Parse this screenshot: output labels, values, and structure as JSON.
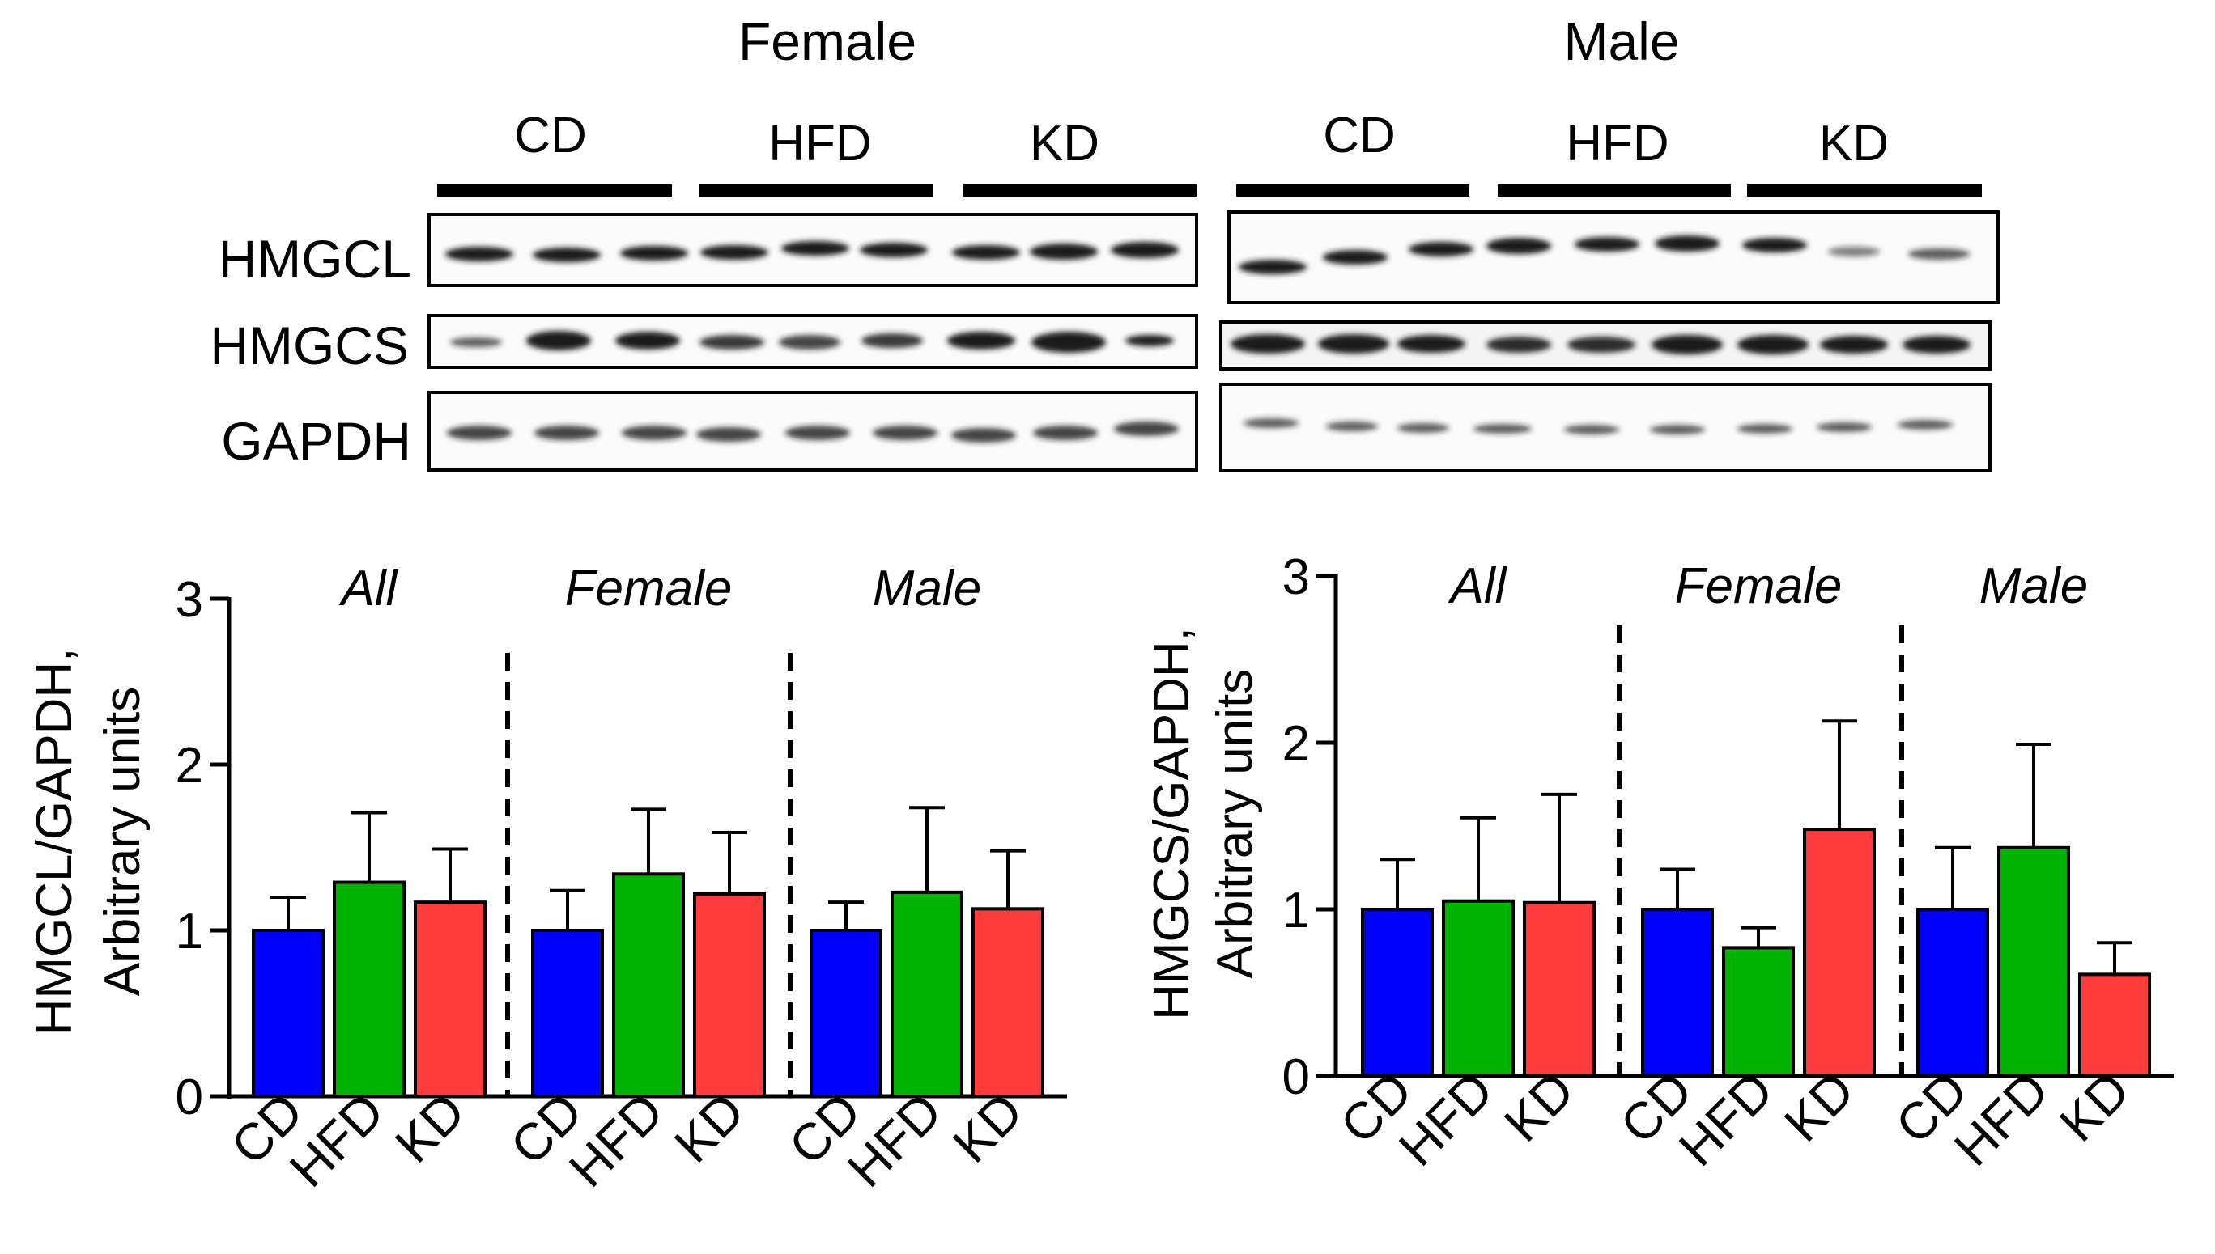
{
  "blot": {
    "female_title": "Female",
    "male_title": "Male",
    "groups": [
      "CD",
      "HFD",
      "KD"
    ],
    "proteins": [
      "HMGCL",
      "HMGCS",
      "GAPDH"
    ]
  },
  "colors": {
    "CD": "#0000ff",
    "HFD": "#00b400",
    "KD": "#ff3b3b"
  },
  "chart_data": [
    {
      "type": "bar",
      "ylabel_line1": "HMGCL/GAPDH,",
      "ylabel_line2": "Arbitrary units",
      "ylim": [
        0,
        3
      ],
      "yticks": [
        0,
        1,
        2,
        3
      ],
      "categories": [
        "CD",
        "HFD",
        "KD"
      ],
      "panels": [
        {
          "name": "All",
          "values": [
            1.0,
            1.29,
            1.17
          ],
          "errors": [
            0.2,
            0.42,
            0.32
          ]
        },
        {
          "name": "Female",
          "values": [
            1.0,
            1.34,
            1.22
          ],
          "errors": [
            0.24,
            0.39,
            0.37
          ]
        },
        {
          "name": "Male",
          "values": [
            1.0,
            1.23,
            1.13
          ],
          "errors": [
            0.17,
            0.51,
            0.35
          ]
        }
      ]
    },
    {
      "type": "bar",
      "ylabel_line1": "HMGCS/GAPDH,",
      "ylabel_line2": "Arbitrary units",
      "ylim": [
        0,
        3
      ],
      "yticks": [
        0,
        1,
        2,
        3
      ],
      "categories": [
        "CD",
        "HFD",
        "KD"
      ],
      "panels": [
        {
          "name": "All",
          "values": [
            1.0,
            1.05,
            1.04
          ],
          "errors": [
            0.3,
            0.5,
            0.65
          ]
        },
        {
          "name": "Female",
          "values": [
            1.0,
            0.77,
            1.48
          ],
          "errors": [
            0.24,
            0.12,
            0.65
          ]
        },
        {
          "name": "Male",
          "values": [
            1.0,
            1.37,
            0.61
          ],
          "errors": [
            0.37,
            0.62,
            0.19
          ]
        }
      ]
    }
  ]
}
